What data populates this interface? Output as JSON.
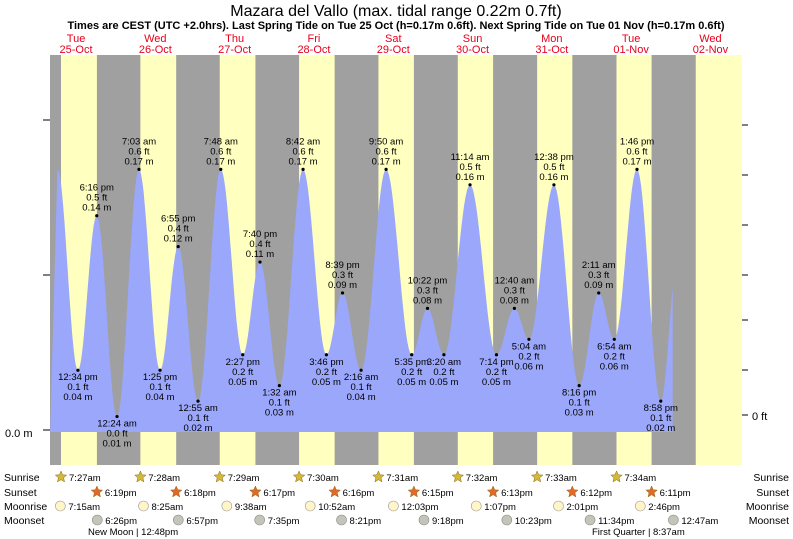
{
  "title": "Mazara del Vallo (max. tidal range 0.22m 0.7ft)",
  "subtitle": "Times are CEST (UTC +2.0hrs). Last Spring Tide on Tue 25 Oct (h=0.17m 0.6ft). Next Spring Tide on Tue 01 Nov (h=0.17m 0.6ft)",
  "left_axis_label": "0.0 m",
  "right_axis_label": "0 ft",
  "row_labels": [
    "Sunrise",
    "Sunset",
    "Moonrise",
    "Moonset"
  ],
  "colors": {
    "night": "#a0a0a0",
    "day": "#ffffc0",
    "tide": "#9aa7fa",
    "day_text": "#e8001c",
    "sun_star": "#d4b83a",
    "sunset_star": "#e06a2a"
  },
  "days": [
    {
      "dow": "Tue",
      "date": "25-Oct"
    },
    {
      "dow": "Wed",
      "date": "26-Oct"
    },
    {
      "dow": "Thu",
      "date": "27-Oct"
    },
    {
      "dow": "Fri",
      "date": "28-Oct"
    },
    {
      "dow": "Sat",
      "date": "29-Oct"
    },
    {
      "dow": "Sun",
      "date": "30-Oct"
    },
    {
      "dow": "Mon",
      "date": "31-Oct"
    },
    {
      "dow": "Tue",
      "date": "01-Nov"
    },
    {
      "dow": "Wed",
      "date": "02-Nov"
    }
  ],
  "chart_data": {
    "type": "area",
    "title": "Mazara del Vallo (max. tidal range 0.22m 0.7ft)",
    "x_range": [
      "24-Oct 21:00",
      "02-Nov 03:00"
    ],
    "y_unit": "m",
    "ylim": [
      0.0,
      0.22
    ],
    "series": [
      {
        "values": [
          {
            "day": 0,
            "time": "6:16 pm",
            "m": 0.14,
            "ft": "0.5 ft",
            "m_text": "0.14 m"
          },
          {
            "day": 0,
            "time": "12:34 pm",
            "m": 0.04,
            "ft": "0.1 ft",
            "m_text": "0.04 m"
          },
          {
            "day": 1,
            "time": "12:24 am",
            "m": 0.01,
            "ft": "0.0 ft",
            "m_text": "0.01 m"
          },
          {
            "day": 1,
            "time": "7:03 am",
            "m": 0.17,
            "ft": "0.6 ft",
            "m_text": "0.17 m"
          },
          {
            "day": 1,
            "time": "1:25 pm",
            "m": 0.04,
            "ft": "0.1 ft",
            "m_text": "0.04 m"
          },
          {
            "day": 1,
            "time": "6:55 pm",
            "m": 0.12,
            "ft": "0.4 ft",
            "m_text": "0.12 m"
          },
          {
            "day": 2,
            "time": "12:55 am",
            "m": 0.02,
            "ft": "0.1 ft",
            "m_text": "0.02 m"
          },
          {
            "day": 2,
            "time": "7:48 am",
            "m": 0.17,
            "ft": "0.6 ft",
            "m_text": "0.17 m"
          },
          {
            "day": 2,
            "time": "2:27 pm",
            "m": 0.05,
            "ft": "0.2 ft",
            "m_text": "0.05 m"
          },
          {
            "day": 2,
            "time": "7:40 pm",
            "m": 0.11,
            "ft": "0.4 ft",
            "m_text": "0.11 m"
          },
          {
            "day": 3,
            "time": "1:32 am",
            "m": 0.03,
            "ft": "0.1 ft",
            "m_text": "0.03 m"
          },
          {
            "day": 3,
            "time": "8:42 am",
            "m": 0.17,
            "ft": "0.6 ft",
            "m_text": "0.17 m"
          },
          {
            "day": 3,
            "time": "3:46 pm",
            "m": 0.05,
            "ft": "0.2 ft",
            "m_text": "0.05 m"
          },
          {
            "day": 3,
            "time": "8:39 pm",
            "m": 0.09,
            "ft": "0.3 ft",
            "m_text": "0.09 m"
          },
          {
            "day": 4,
            "time": "2:16 am",
            "m": 0.04,
            "ft": "0.1 ft",
            "m_text": "0.04 m"
          },
          {
            "day": 4,
            "time": "9:50 am",
            "m": 0.17,
            "ft": "0.6 ft",
            "m_text": "0.17 m"
          },
          {
            "day": 4,
            "time": "5:35 pm",
            "m": 0.05,
            "ft": "0.2 ft",
            "m_text": "0.05 m"
          },
          {
            "day": 4,
            "time": "10:22 pm",
            "m": 0.08,
            "ft": "0.3 ft",
            "m_text": "0.08 m"
          },
          {
            "day": 5,
            "time": "3:20 am",
            "m": 0.05,
            "ft": "0.2 ft",
            "m_text": "0.05 m"
          },
          {
            "day": 5,
            "time": "11:14 am",
            "m": 0.16,
            "ft": "0.5 ft",
            "m_text": "0.16 m"
          },
          {
            "day": 5,
            "time": "7:14 pm",
            "m": 0.05,
            "ft": "0.2 ft",
            "m_text": "0.05 m"
          },
          {
            "day": 6,
            "time": "12:40 am",
            "m": 0.08,
            "ft": "0.3 ft",
            "m_text": "0.08 m"
          },
          {
            "day": 6,
            "time": "5:04 am",
            "m": 0.06,
            "ft": "0.2 ft",
            "m_text": "0.06 m"
          },
          {
            "day": 6,
            "time": "12:38 pm",
            "m": 0.16,
            "ft": "0.5 ft",
            "m_text": "0.16 m"
          },
          {
            "day": 6,
            "time": "8:16 pm",
            "m": 0.03,
            "ft": "0.1 ft",
            "m_text": "0.03 m"
          },
          {
            "day": 7,
            "time": "2:11 am",
            "m": 0.09,
            "ft": "0.3 ft",
            "m_text": "0.09 m"
          },
          {
            "day": 7,
            "time": "6:54 am",
            "m": 0.06,
            "ft": "0.2 ft",
            "m_text": "0.06 m"
          },
          {
            "day": 7,
            "time": "1:46 pm",
            "m": 0.17,
            "ft": "0.6 ft",
            "m_text": "0.17 m"
          },
          {
            "day": 7,
            "time": "8:58 pm",
            "m": 0.02,
            "ft": "0.1 ft",
            "m_text": "0.02 m"
          }
        ]
      }
    ]
  },
  "sunrise": [
    {
      "day": 0,
      "time": "7:27am"
    },
    {
      "day": 1,
      "time": "7:28am"
    },
    {
      "day": 2,
      "time": "7:29am"
    },
    {
      "day": 3,
      "time": "7:30am"
    },
    {
      "day": 4,
      "time": "7:31am"
    },
    {
      "day": 5,
      "time": "7:32am"
    },
    {
      "day": 6,
      "time": "7:33am"
    },
    {
      "day": 7,
      "time": "7:34am"
    }
  ],
  "sunset": [
    {
      "day": 0,
      "time": "6:19pm"
    },
    {
      "day": 1,
      "time": "6:18pm"
    },
    {
      "day": 2,
      "time": "6:17pm"
    },
    {
      "day": 3,
      "time": "6:16pm"
    },
    {
      "day": 4,
      "time": "6:15pm"
    },
    {
      "day": 5,
      "time": "6:13pm"
    },
    {
      "day": 6,
      "time": "6:12pm"
    },
    {
      "day": 7,
      "time": "6:11pm"
    }
  ],
  "moonrise": [
    {
      "day": 0,
      "time": "7:15am"
    },
    {
      "day": 1,
      "time": "8:25am"
    },
    {
      "day": 2,
      "time": "9:38am"
    },
    {
      "day": 3,
      "time": "10:52am"
    },
    {
      "day": 4,
      "time": "12:03pm"
    },
    {
      "day": 5,
      "time": "1:07pm"
    },
    {
      "day": 6,
      "time": "2:01pm"
    },
    {
      "day": 7,
      "time": "2:46pm"
    }
  ],
  "moonset": [
    {
      "day": 0,
      "time": "6:26pm"
    },
    {
      "day": 1,
      "time": "6:57pm"
    },
    {
      "day": 2,
      "time": "7:35pm"
    },
    {
      "day": 3,
      "time": "8:21pm"
    },
    {
      "day": 4,
      "time": "9:18pm"
    },
    {
      "day": 5,
      "time": "10:23pm"
    },
    {
      "day": 6,
      "time": "11:34pm"
    },
    {
      "day": 8,
      "time": "12:47am"
    }
  ],
  "moon_phases": [
    {
      "day": 0,
      "text": "New Moon | 12:48pm"
    },
    {
      "day": 7,
      "text": "First Quarter | 8:37am"
    }
  ]
}
